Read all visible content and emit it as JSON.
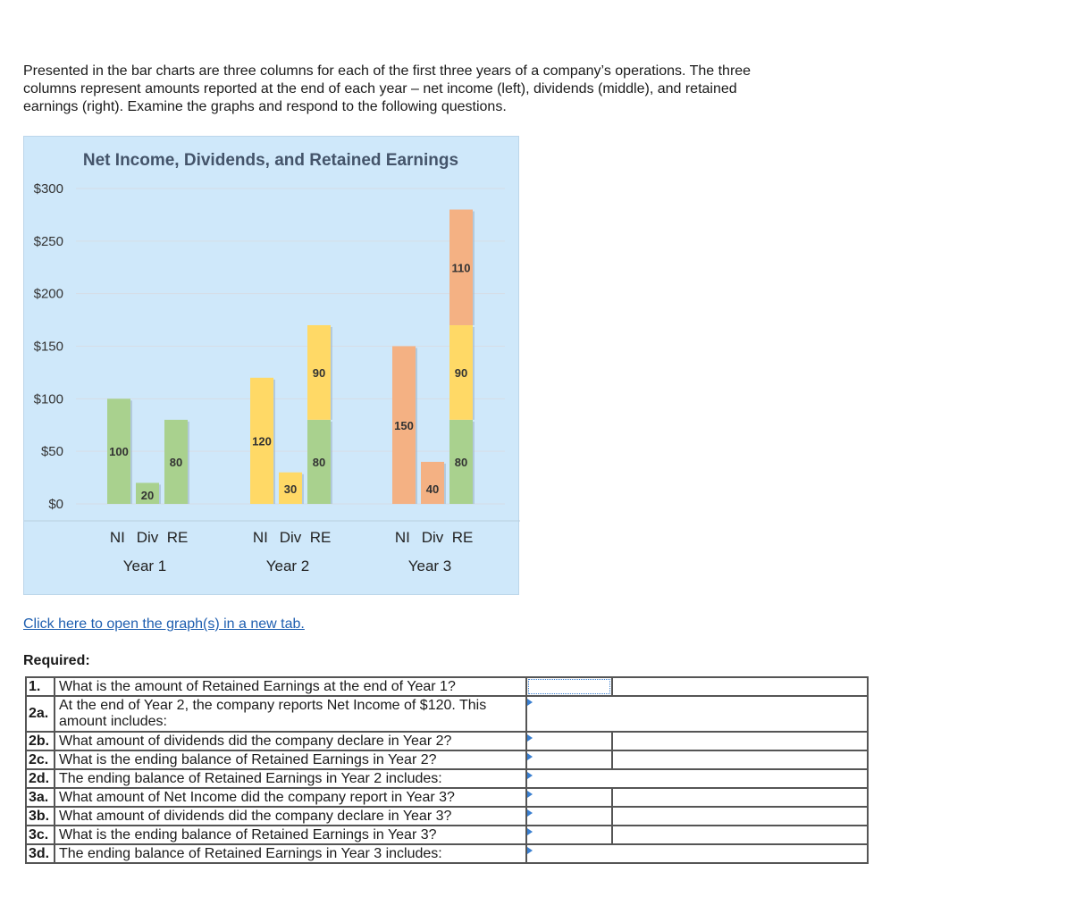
{
  "intro": {
    "line1": "Presented in the bar charts are three columns for each of the first three years of a company’s operations. The three",
    "line2": "columns represent amounts reported at the end of each year – net income (left), dividends (middle), and retained",
    "line3": "earnings (right). Examine the graphs and respond to the following questions."
  },
  "chart_data": {
    "type": "bar",
    "title": "Net Income, Dividends, and Retained Earnings",
    "y_ticks": [
      "$300",
      "$250",
      "$200",
      "$150",
      "$100",
      "$50",
      "$0"
    ],
    "ylim": [
      0,
      300
    ],
    "grid": true,
    "colors": {
      "green": "#a9d18e",
      "yellow": "#ffd966",
      "orange": "#f4b183"
    },
    "groups": [
      {
        "year": "Year 1",
        "bars": [
          {
            "label": "NI",
            "segments": [
              {
                "value": 100,
                "color": "green",
                "label": "100"
              }
            ]
          },
          {
            "label": "Div",
            "segments": [
              {
                "value": 20,
                "color": "green",
                "label": "20"
              }
            ]
          },
          {
            "label": "RE",
            "segments": [
              {
                "value": 80,
                "color": "green",
                "label": "80"
              }
            ]
          }
        ]
      },
      {
        "year": "Year 2",
        "bars": [
          {
            "label": "NI",
            "segments": [
              {
                "value": 120,
                "color": "yellow",
                "label": "120"
              }
            ]
          },
          {
            "label": "Div",
            "segments": [
              {
                "value": 30,
                "color": "yellow",
                "label": "30"
              }
            ]
          },
          {
            "label": "RE",
            "segments": [
              {
                "value": 80,
                "color": "green",
                "label": "80"
              },
              {
                "value": 90,
                "color": "yellow",
                "label": "90"
              }
            ]
          }
        ]
      },
      {
        "year": "Year 3",
        "bars": [
          {
            "label": "NI",
            "segments": [
              {
                "value": 150,
                "color": "orange",
                "label": "150"
              }
            ]
          },
          {
            "label": "Div",
            "segments": [
              {
                "value": 40,
                "color": "orange",
                "label": "40"
              }
            ]
          },
          {
            "label": "RE",
            "segments": [
              {
                "value": 80,
                "color": "green",
                "label": "80"
              },
              {
                "value": 90,
                "color": "yellow",
                "label": "90"
              },
              {
                "value": 110,
                "color": "orange",
                "label": "110"
              }
            ]
          }
        ]
      }
    ]
  },
  "link_text": "Click here to open the graph(s) in a new tab.",
  "required_label": "Required:",
  "questions": [
    {
      "num": "1.",
      "text": "What is the amount of Retained Earnings at the end of Year 1?"
    },
    {
      "num": "2a.",
      "text": "At the end of Year 2, the company reports Net Income of $120. This amount includes:"
    },
    {
      "num": "2b.",
      "text": "What amount of dividends did the company declare in Year 2?"
    },
    {
      "num": "2c.",
      "text": "What is the ending balance of Retained Earnings in Year 2?"
    },
    {
      "num": "2d.",
      "text": "The ending balance of Retained Earnings in Year 2 includes:"
    },
    {
      "num": "3a.",
      "text": "What amount of Net Income did the company report in Year 3?"
    },
    {
      "num": "3b.",
      "text": "What amount of dividends did the company declare in Year 3?"
    },
    {
      "num": "3c.",
      "text": "What is the ending balance of Retained Earnings in Year 3?"
    },
    {
      "num": "3d.",
      "text": "The ending balance of Retained Earnings in Year 3 includes:"
    }
  ]
}
